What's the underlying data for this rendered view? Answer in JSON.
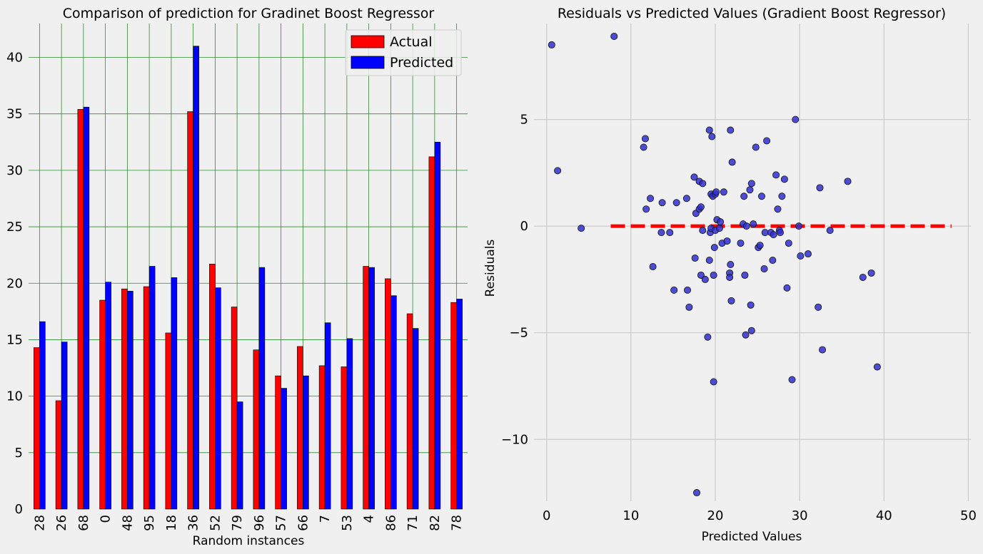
{
  "chart_data": [
    {
      "type": "bar",
      "title": "Comparison of prediction for Gradinet Boost Regressor",
      "xlabel": "Random instances",
      "ylabel": "",
      "ylim": [
        0,
        43
      ],
      "yticks": [
        0,
        5,
        10,
        15,
        20,
        25,
        30,
        35,
        40
      ],
      "grid": true,
      "grid_color": "#2e8b2e",
      "legend": "top-right",
      "categories": [
        "28",
        "26",
        "68",
        "0",
        "48",
        "95",
        "18",
        "36",
        "52",
        "79",
        "96",
        "57",
        "66",
        "7",
        "53",
        "4",
        "86",
        "71",
        "82",
        "78"
      ],
      "series": [
        {
          "name": "Actual",
          "color": "#ff0000",
          "values": [
            14.3,
            9.6,
            35.4,
            18.5,
            19.5,
            19.7,
            15.6,
            35.2,
            21.7,
            17.9,
            14.1,
            11.8,
            14.4,
            12.7,
            12.6,
            21.5,
            20.4,
            17.3,
            31.2,
            18.3
          ]
        },
        {
          "name": "Predicted",
          "color": "#0000ff",
          "values": [
            16.6,
            14.8,
            35.6,
            20.1,
            19.3,
            21.5,
            20.5,
            41.0,
            19.6,
            9.5,
            21.4,
            10.7,
            11.8,
            16.5,
            15.1,
            21.4,
            18.9,
            16.0,
            32.5,
            18.6
          ]
        }
      ]
    },
    {
      "type": "scatter",
      "title": "Residuals vs Predicted Values (Gradient Boost Regressor)",
      "xlabel": "Predicted Values",
      "ylabel": "Residuals",
      "xlim": [
        -1.5,
        50.3
      ],
      "ylim": [
        -12.9,
        9.5
      ],
      "xticks": [
        0,
        10,
        20,
        30,
        40,
        50
      ],
      "yticks": [
        -10,
        -5,
        0,
        5
      ],
      "ytick_labels": [
        "−10",
        "−5",
        "0",
        "5"
      ],
      "grid": true,
      "point_color": "#2f2fcf",
      "reference_line": {
        "y": 0,
        "x_start": 7.6,
        "x_end": 48,
        "color": "#ff0000",
        "style": "dashed"
      },
      "points": [
        [
          0.6,
          8.5
        ],
        [
          8.0,
          8.9
        ],
        [
          1.3,
          2.6
        ],
        [
          4.1,
          -0.1
        ],
        [
          11.5,
          3.7
        ],
        [
          11.7,
          4.1
        ],
        [
          11.8,
          0.8
        ],
        [
          12.3,
          1.3
        ],
        [
          12.6,
          -1.9
        ],
        [
          13.6,
          -0.3
        ],
        [
          13.7,
          1.1
        ],
        [
          14.6,
          -0.3
        ],
        [
          15.1,
          -3.0
        ],
        [
          15.4,
          1.1
        ],
        [
          16.6,
          1.3
        ],
        [
          16.7,
          -3.0
        ],
        [
          16.9,
          -3.8
        ],
        [
          17.5,
          2.3
        ],
        [
          17.6,
          -1.5
        ],
        [
          17.7,
          0.6
        ],
        [
          18.1,
          0.8
        ],
        [
          18.1,
          2.1
        ],
        [
          18.3,
          -2.3
        ],
        [
          18.3,
          0.9
        ],
        [
          18.5,
          2.0
        ],
        [
          18.5,
          -0.2
        ],
        [
          18.8,
          -2.5
        ],
        [
          19.1,
          -5.2
        ],
        [
          19.3,
          4.5
        ],
        [
          19.3,
          -1.6
        ],
        [
          19.4,
          -0.3
        ],
        [
          19.5,
          1.5
        ],
        [
          19.5,
          -0.1
        ],
        [
          19.6,
          4.2
        ],
        [
          19.7,
          1.4
        ],
        [
          19.8,
          -7.3
        ],
        [
          19.8,
          -2.3
        ],
        [
          19.9,
          -1.0
        ],
        [
          20.0,
          1.5
        ],
        [
          20.0,
          -0.2
        ],
        [
          20.1,
          1.6
        ],
        [
          20.2,
          0.3
        ],
        [
          20.5,
          -0.1
        ],
        [
          20.6,
          0.2
        ],
        [
          20.8,
          -0.8
        ],
        [
          21.0,
          1.6
        ],
        [
          21.4,
          -0.7
        ],
        [
          21.7,
          -2.2
        ],
        [
          21.7,
          -2.4
        ],
        [
          21.8,
          -1.8
        ],
        [
          21.8,
          4.5
        ],
        [
          21.9,
          -3.5
        ],
        [
          22.0,
          3.0
        ],
        [
          23.0,
          -0.8
        ],
        [
          23.3,
          0.1
        ],
        [
          23.4,
          1.4
        ],
        [
          23.5,
          -2.3
        ],
        [
          23.6,
          -5.1
        ],
        [
          23.7,
          0.0
        ],
        [
          24.1,
          1.7
        ],
        [
          24.2,
          -3.7
        ],
        [
          24.3,
          -4.9
        ],
        [
          24.3,
          2.0
        ],
        [
          24.5,
          0.1
        ],
        [
          24.8,
          3.7
        ],
        [
          25.1,
          -1.0
        ],
        [
          25.3,
          -0.9
        ],
        [
          25.5,
          1.4
        ],
        [
          25.8,
          -2.0
        ],
        [
          25.9,
          -0.3
        ],
        [
          26.1,
          4.0
        ],
        [
          26.6,
          -0.3
        ],
        [
          26.8,
          -1.6
        ],
        [
          26.9,
          -0.4
        ],
        [
          27.2,
          2.4
        ],
        [
          27.4,
          0.8
        ],
        [
          27.6,
          -0.2
        ],
        [
          27.7,
          -0.3
        ],
        [
          27.9,
          1.4
        ],
        [
          28.2,
          2.2
        ],
        [
          28.5,
          -2.9
        ],
        [
          28.7,
          -0.8
        ],
        [
          29.1,
          -7.2
        ],
        [
          29.5,
          5.0
        ],
        [
          29.9,
          0.0
        ],
        [
          30.1,
          -1.4
        ],
        [
          31.0,
          -1.3
        ],
        [
          32.2,
          -3.8
        ],
        [
          32.4,
          1.8
        ],
        [
          32.7,
          -5.8
        ],
        [
          33.6,
          -0.2
        ],
        [
          35.7,
          2.1
        ],
        [
          37.5,
          -2.4
        ],
        [
          38.5,
          -2.2
        ],
        [
          39.2,
          -6.6
        ],
        [
          17.8,
          -12.5
        ]
      ]
    }
  ]
}
